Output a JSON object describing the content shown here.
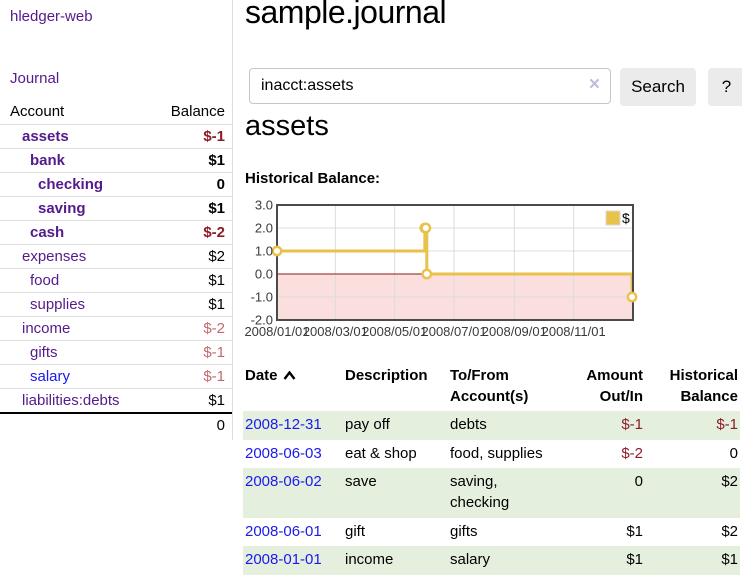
{
  "app": {
    "brand": "hledger-web",
    "nav": {
      "journal": "Journal"
    }
  },
  "sidebar": {
    "table": {
      "headers": [
        "Account",
        "Balance"
      ],
      "rows": [
        {
          "label": "assets",
          "depth": 1,
          "bold": true,
          "link_color": "purple",
          "balance": "$-1",
          "balance_class": "neg"
        },
        {
          "label": "bank",
          "depth": 2,
          "bold": true,
          "link_color": "purple",
          "balance": "$1",
          "balance_class": ""
        },
        {
          "label": "checking",
          "depth": 3,
          "bold": true,
          "link_color": "purple",
          "balance": "0",
          "balance_class": ""
        },
        {
          "label": "saving",
          "depth": 3,
          "bold": true,
          "link_color": "purple",
          "balance": "$1",
          "balance_class": ""
        },
        {
          "label": "cash",
          "depth": 2,
          "bold": true,
          "link_color": "purple",
          "balance": "$-2",
          "balance_class": "neg"
        },
        {
          "label": "expenses",
          "depth": 1,
          "bold": false,
          "link_color": "purple",
          "balance": "$2",
          "balance_class": ""
        },
        {
          "label": "food",
          "depth": 2,
          "bold": false,
          "link_color": "purple",
          "balance": "$1",
          "balance_class": ""
        },
        {
          "label": "supplies",
          "depth": 2,
          "bold": false,
          "link_color": "purple",
          "balance": "$1",
          "balance_class": ""
        },
        {
          "label": "income",
          "depth": 1,
          "bold": false,
          "link_color": "purple",
          "balance": "$-2",
          "balance_class": "neg-dim"
        },
        {
          "label": "gifts",
          "depth": 2,
          "bold": false,
          "link_color": "purple",
          "balance": "$-1",
          "balance_class": "neg-dim"
        },
        {
          "label": "salary",
          "depth": 2,
          "bold": false,
          "link_color": "blue",
          "balance": "$-1",
          "balance_class": "neg-dim"
        },
        {
          "label": "liabilities:debts",
          "depth": 1,
          "bold": false,
          "link_color": "purple",
          "balance": "$1",
          "balance_class": ""
        }
      ],
      "total": "0"
    }
  },
  "main": {
    "title": "sample.journal",
    "search": {
      "value": "inacct:assets",
      "clear_icon": "×",
      "button": "Search",
      "help_button": "?"
    },
    "account_heading": "assets",
    "chart_heading": "Historical Balance:",
    "table": {
      "headers": {
        "date": "Date",
        "description": "Description",
        "accounts": "To/From Account(s)",
        "amount": "Amount Out/In",
        "balance": "Historical Balance"
      },
      "rows": [
        {
          "date": "2008-12-31",
          "description": "pay off",
          "accounts": "debts",
          "amount": "$-1",
          "amount_class": "neg",
          "balance": "$-1",
          "balance_class": "neg"
        },
        {
          "date": "2008-06-03",
          "description": "eat & shop",
          "accounts": "food, supplies",
          "amount": "$-2",
          "amount_class": "neg",
          "balance": "0",
          "balance_class": ""
        },
        {
          "date": "2008-06-02",
          "description": "save",
          "accounts": "saving,\nchecking",
          "amount": "0",
          "amount_class": "",
          "balance": "$2",
          "balance_class": ""
        },
        {
          "date": "2008-06-01",
          "description": "gift",
          "accounts": "gifts",
          "amount": "$1",
          "amount_class": "",
          "balance": "$2",
          "balance_class": ""
        },
        {
          "date": "2008-01-01",
          "description": "income",
          "accounts": "salary",
          "amount": "$1",
          "amount_class": "",
          "balance": "$1",
          "balance_class": ""
        }
      ]
    }
  },
  "chart_data": {
    "type": "line",
    "style": "step-after",
    "title": "Historical Balance:",
    "legend": [
      {
        "label": "$",
        "color": "#e8c24a"
      }
    ],
    "legend_position": "top-right",
    "x_range": [
      "2008-01-01",
      "2009-01-01"
    ],
    "ylim": [
      -2,
      3
    ],
    "yticks": [
      "3.0",
      "2.0",
      "1.0",
      "0.0",
      "-1.0",
      "-2.0"
    ],
    "xticks": [
      {
        "label": "2008/01/01",
        "date": "2008-01-01"
      },
      {
        "label": "2008/03/01",
        "date": "2008-03-01"
      },
      {
        "label": "2008/05/01",
        "date": "2008-05-01"
      },
      {
        "label": "2008/07/01",
        "date": "2008-07-01"
      },
      {
        "label": "2008/09/01",
        "date": "2008-09-01"
      },
      {
        "label": "2008/11/01",
        "date": "2008-11-01"
      }
    ],
    "series": [
      {
        "name": "$",
        "color": "#e8c24a",
        "points": [
          {
            "date": "2008-01-01",
            "value": 1
          },
          {
            "date": "2008-06-01",
            "value": 2
          },
          {
            "date": "2008-06-02",
            "value": 2
          },
          {
            "date": "2008-06-03",
            "value": 0
          },
          {
            "date": "2008-12-31",
            "value": -1
          }
        ]
      }
    ],
    "grid": true,
    "negative_region_color": "#fbdede",
    "zero_line_color": "#8b1a1a",
    "border_color": "#4a4a4a",
    "grid_color": "#dcdcdc"
  }
}
